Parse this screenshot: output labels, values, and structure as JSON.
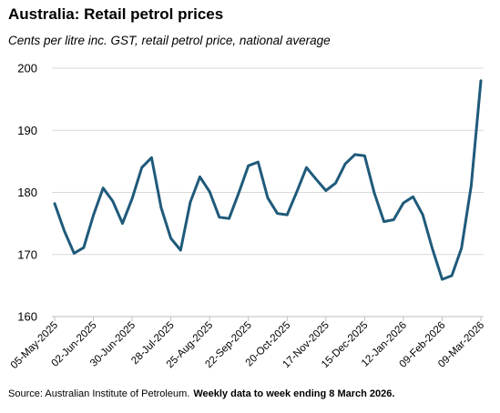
{
  "header": {
    "title": "Australia: Retail petrol prices",
    "subtitle": "Cents per litre inc. GST, retail petrol price, national average"
  },
  "footer": {
    "source": "Source: Australian Institute of Petroleum.",
    "note": "Weekly data to week ending 8 March 2026."
  },
  "colors": {
    "line": "#1f5a7a",
    "grid": "#d9d9d9",
    "axis": "#bfbfbf"
  },
  "chart_data": {
    "type": "line",
    "title": "Australia: Retail petrol prices",
    "ylabel": "Cents per litre inc. GST, retail petrol price, national average",
    "xlabel": "",
    "ylim": [
      160,
      200
    ],
    "yticks": [
      160,
      170,
      180,
      190,
      200
    ],
    "grid": true,
    "legend": "none",
    "x_tick_labels": [
      "05-May-2025",
      "02-Jun-2025",
      "30-Jun-2025",
      "28-Jul-2025",
      "25-Aug-2025",
      "22-Sep-2025",
      "20-Oct-2025",
      "17-Nov-2025",
      "15-Dec-2025",
      "12-Jan-2026",
      "09-Feb-2026",
      "09-Mar-2026"
    ],
    "series": [
      {
        "x": [
          "05-May-2025",
          "12-May-2025",
          "19-May-2025",
          "26-May-2025",
          "02-Jun-2025",
          "09-Jun-2025",
          "16-Jun-2025",
          "23-Jun-2025",
          "30-Jun-2025",
          "07-Jul-2025",
          "14-Jul-2025",
          "21-Jul-2025",
          "28-Jul-2025",
          "04-Aug-2025",
          "11-Aug-2025",
          "18-Aug-2025",
          "25-Aug-2025",
          "01-Sep-2025",
          "08-Sep-2025",
          "15-Sep-2025",
          "22-Sep-2025",
          "29-Sep-2025",
          "06-Oct-2025",
          "13-Oct-2025",
          "20-Oct-2025",
          "27-Oct-2025",
          "03-Nov-2025",
          "10-Nov-2025",
          "17-Nov-2025",
          "24-Nov-2025",
          "01-Dec-2025",
          "08-Dec-2025",
          "15-Dec-2025",
          "22-Dec-2025",
          "29-Dec-2025",
          "05-Jan-2026",
          "12-Jan-2026",
          "19-Jan-2026",
          "26-Jan-2026",
          "02-Feb-2026",
          "09-Feb-2026",
          "16-Feb-2026",
          "23-Feb-2026",
          "02-Mar-2026",
          "09-Mar-2026"
        ],
        "values": [
          178.2,
          173.8,
          170.2,
          171.1,
          176.3,
          180.7,
          178.6,
          175.0,
          179.0,
          184.0,
          185.6,
          177.5,
          172.6,
          170.7,
          178.4,
          182.5,
          180.1,
          176.0,
          175.8,
          179.9,
          184.3,
          184.9,
          179.1,
          176.6,
          176.4,
          180.1,
          184.0,
          182.1,
          180.3,
          181.5,
          184.6,
          186.1,
          185.9,
          179.9,
          175.3,
          175.6,
          178.3,
          179.3,
          176.4,
          170.9,
          166.0,
          166.6,
          171.0,
          181.1,
          198.0
        ]
      }
    ]
  }
}
